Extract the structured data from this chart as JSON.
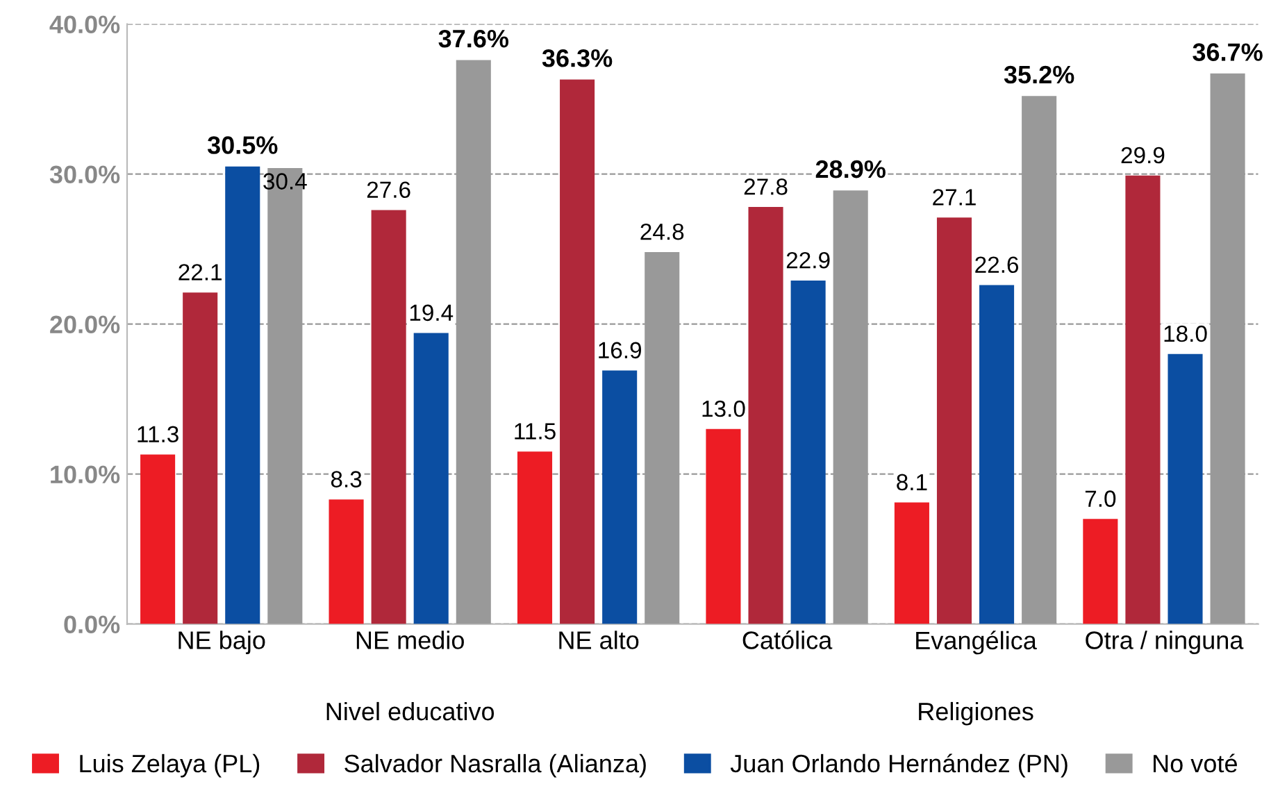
{
  "chart_data": {
    "type": "bar",
    "categories": [
      "NE bajo",
      "NE medio",
      "NE alto",
      "Católica",
      "Evangélica",
      "Otra / ninguna"
    ],
    "series": [
      {
        "name": "Luis Zelaya (PL)",
        "color": "#ed1c24",
        "values": [
          11.3,
          8.3,
          11.5,
          13.0,
          8.1,
          7.0
        ],
        "value_labels": [
          "11.3",
          "8.3",
          "11.5",
          "13.0",
          "8.1",
          "7.0"
        ]
      },
      {
        "name": "Salvador Nasralla (Alianza)",
        "color": "#b0283a",
        "values": [
          22.1,
          27.6,
          36.3,
          27.8,
          27.1,
          29.9
        ],
        "value_labels": [
          "22.1",
          "27.6",
          "36.3%",
          "27.8",
          "27.1",
          "29.9"
        ]
      },
      {
        "name": "Juan Orlando Hernández (PN)",
        "color": "#0b4ea2",
        "values": [
          30.5,
          19.4,
          16.9,
          22.9,
          22.6,
          18.0
        ],
        "value_labels": [
          "30.5%",
          "19.4",
          "16.9",
          "22.9",
          "22.6",
          "18.0"
        ]
      },
      {
        "name": "No voté",
        "color": "#999999",
        "values": [
          30.4,
          37.6,
          24.8,
          28.9,
          35.2,
          36.7
        ],
        "value_labels": [
          "30.4",
          "37.6%",
          "24.8",
          "28.9%",
          "35.2%",
          "36.7%"
        ]
      }
    ],
    "annotations": [
      "Nivel educativo",
      "Religiones"
    ],
    "ylim": [
      0,
      40
    ],
    "yticks": [
      {
        "value": 0,
        "label": "0.0%"
      },
      {
        "value": 10,
        "label": "10.0%"
      },
      {
        "value": 20,
        "label": "20.0%"
      },
      {
        "value": 30,
        "label": "30.0%"
      },
      {
        "value": 40,
        "label": "40.0%"
      }
    ],
    "grid": "y",
    "legend": "bottom"
  }
}
